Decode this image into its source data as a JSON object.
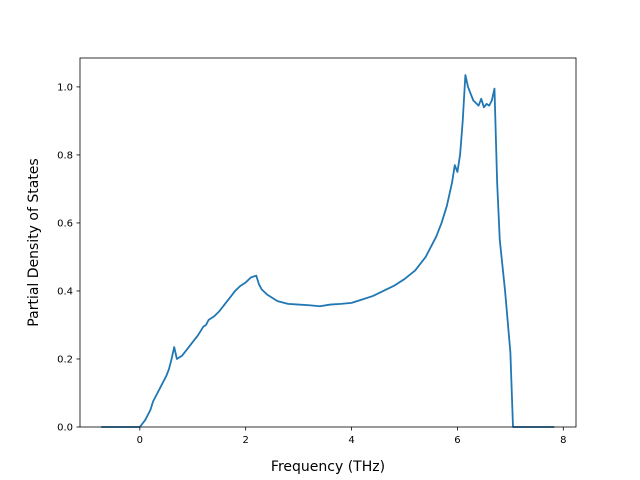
{
  "chart_data": {
    "type": "line",
    "title": "",
    "xlabel": "Frequency (THz)",
    "ylabel": "Partial Density of States",
    "xlim": [
      -1.13,
      8.24
    ],
    "ylim": [
      0.0,
      1.085
    ],
    "xticks": [
      0,
      2,
      4,
      6,
      8
    ],
    "xtick_labels": [
      "0",
      "2",
      "4",
      "6",
      "8"
    ],
    "yticks": [
      0.0,
      0.2,
      0.4,
      0.6,
      0.8,
      1.0
    ],
    "ytick_labels": [
      "0.0",
      "0.2",
      "0.4",
      "0.6",
      "0.8",
      "1.0"
    ],
    "grid": false,
    "series": [
      {
        "color": "#1f77b4",
        "x": [
          -0.72,
          -0.4,
          -0.1,
          0.0,
          0.1,
          0.2,
          0.25,
          0.3,
          0.4,
          0.5,
          0.55,
          0.6,
          0.65,
          0.7,
          0.8,
          0.9,
          1.0,
          1.1,
          1.2,
          1.25,
          1.3,
          1.4,
          1.5,
          1.6,
          1.7,
          1.8,
          1.9,
          2.0,
          2.1,
          2.2,
          2.25,
          2.3,
          2.4,
          2.5,
          2.6,
          2.8,
          3.0,
          3.2,
          3.4,
          3.6,
          3.8,
          4.0,
          4.2,
          4.4,
          4.6,
          4.8,
          5.0,
          5.2,
          5.4,
          5.6,
          5.7,
          5.8,
          5.9,
          5.95,
          6.0,
          6.05,
          6.1,
          6.15,
          6.2,
          6.3,
          6.4,
          6.45,
          6.5,
          6.55,
          6.6,
          6.65,
          6.7,
          6.75,
          6.8,
          6.9,
          7.0,
          7.05,
          7.12,
          7.3,
          7.5,
          7.82
        ],
        "y": [
          0.0,
          0.0,
          0.0,
          0.0,
          0.02,
          0.05,
          0.075,
          0.09,
          0.12,
          0.15,
          0.17,
          0.2,
          0.235,
          0.2,
          0.21,
          0.23,
          0.25,
          0.27,
          0.295,
          0.3,
          0.315,
          0.325,
          0.34,
          0.36,
          0.38,
          0.4,
          0.415,
          0.425,
          0.44,
          0.445,
          0.42,
          0.405,
          0.39,
          0.38,
          0.37,
          0.362,
          0.36,
          0.358,
          0.355,
          0.36,
          0.362,
          0.365,
          0.375,
          0.385,
          0.4,
          0.415,
          0.435,
          0.46,
          0.5,
          0.56,
          0.6,
          0.65,
          0.72,
          0.77,
          0.75,
          0.8,
          0.9,
          1.035,
          1.0,
          0.96,
          0.945,
          0.965,
          0.94,
          0.95,
          0.945,
          0.96,
          0.995,
          0.72,
          0.55,
          0.4,
          0.22,
          0.0,
          0.0,
          0.0,
          0.0,
          0.0
        ]
      }
    ]
  }
}
